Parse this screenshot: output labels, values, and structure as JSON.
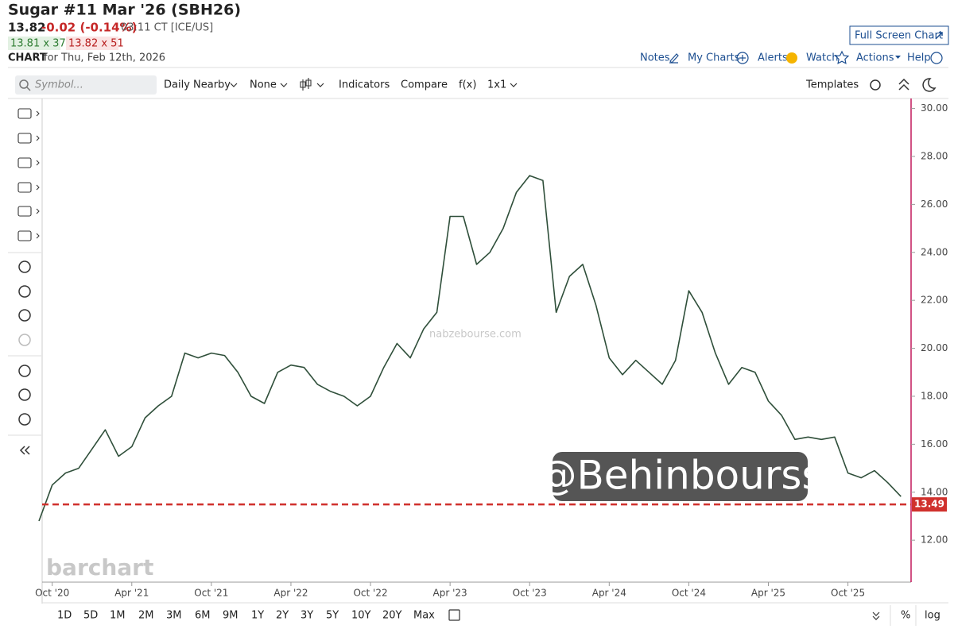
{
  "header": {
    "title": "Sugar #11 Mar '26 (SBH26)",
    "last": "13.82",
    "change": "-0.02 (-0.14%)",
    "time": "03:11 CT [ICE/US]",
    "bid": "13.81 x 37",
    "ask": "13.82 x 51",
    "chart_label": "CHART",
    "chart_date": "for Thu, Feb 12th, 2026",
    "full_screen": "Full Screen Chart"
  },
  "menu": [
    "Notes",
    "My Charts",
    "Alerts",
    "Watch",
    "Actions",
    "Help"
  ],
  "toolbar": {
    "symbol_placeholder": "Symbol...",
    "items": [
      "Daily Nearby",
      "None",
      "Indicators",
      "Compare",
      "f(x)",
      "1x1"
    ],
    "templates": "Templates"
  },
  "chart_data": {
    "type": "line",
    "x": [
      "2020-09",
      "2020-10",
      "2020-11",
      "2020-12",
      "2021-01",
      "2021-02",
      "2021-03",
      "2021-04",
      "2021-05",
      "2021-06",
      "2021-07",
      "2021-08",
      "2021-09",
      "2021-10",
      "2021-11",
      "2021-12",
      "2022-01",
      "2022-02",
      "2022-03",
      "2022-04",
      "2022-05",
      "2022-06",
      "2022-07",
      "2022-08",
      "2022-09",
      "2022-10",
      "2022-11",
      "2022-12",
      "2023-01",
      "2023-02",
      "2023-03",
      "2023-04",
      "2023-05",
      "2023-06",
      "2023-07",
      "2023-08",
      "2023-09",
      "2023-10",
      "2023-11",
      "2023-12",
      "2024-01",
      "2024-02",
      "2024-03",
      "2024-04",
      "2024-05",
      "2024-06",
      "2024-07",
      "2024-08",
      "2024-09",
      "2024-10",
      "2024-11",
      "2024-12",
      "2025-01",
      "2025-02",
      "2025-03",
      "2025-04",
      "2025-05",
      "2025-06",
      "2025-07",
      "2025-08",
      "2025-09",
      "2025-10",
      "2025-11",
      "2025-12",
      "2026-01",
      "2026-02"
    ],
    "series": [
      {
        "name": "SBH26",
        "color": "#2f4f3a",
        "values": [
          12.8,
          14.3,
          14.8,
          15.0,
          15.8,
          16.6,
          15.5,
          15.9,
          17.1,
          17.6,
          18.0,
          19.8,
          19.6,
          19.8,
          19.7,
          19.0,
          18.0,
          17.7,
          19.0,
          19.3,
          19.2,
          18.5,
          18.2,
          18.0,
          17.6,
          18.0,
          19.2,
          20.2,
          19.6,
          20.8,
          21.5,
          25.5,
          25.5,
          23.5,
          24.0,
          25.0,
          26.5,
          27.2,
          27.0,
          21.5,
          23.0,
          23.5,
          21.8,
          19.6,
          18.9,
          19.5,
          19.0,
          18.5,
          19.5,
          22.4,
          21.5,
          19.8,
          18.5,
          19.2,
          19.0,
          17.8,
          17.2,
          16.2,
          16.3,
          16.2,
          16.3,
          14.8,
          14.6,
          14.9,
          14.4,
          13.82
        ]
      }
    ],
    "xlim": [
      "2020-09",
      "2026-03"
    ],
    "xticks": [
      {
        "value": "2020-10",
        "label": "Oct '20"
      },
      {
        "value": "2021-04",
        "label": "Apr '21"
      },
      {
        "value": "2021-10",
        "label": "Oct '21"
      },
      {
        "value": "2022-04",
        "label": "Apr '22"
      },
      {
        "value": "2022-10",
        "label": "Oct '22"
      },
      {
        "value": "2023-04",
        "label": "Apr '23"
      },
      {
        "value": "2023-10",
        "label": "Oct '23"
      },
      {
        "value": "2024-04",
        "label": "Apr '24"
      },
      {
        "value": "2024-10",
        "label": "Oct '24"
      },
      {
        "value": "2025-04",
        "label": "Apr '25"
      },
      {
        "value": "2025-10",
        "label": "Oct '25"
      }
    ],
    "ylim": [
      10.25,
      30.35
    ],
    "yticks": [
      {
        "value": 12,
        "label": "12.00"
      },
      {
        "value": 14,
        "label": "14.00"
      },
      {
        "value": 16,
        "label": "16.00"
      },
      {
        "value": 18,
        "label": "18.00"
      },
      {
        "value": 20,
        "label": "20.00"
      },
      {
        "value": 22,
        "label": "22.00"
      },
      {
        "value": 24,
        "label": "24.00"
      },
      {
        "value": 26,
        "label": "26.00"
      },
      {
        "value": 28,
        "label": "28.00"
      },
      {
        "value": 30,
        "label": "30.00"
      }
    ],
    "reference_line": {
      "value": 13.49,
      "color": "#d0312d"
    },
    "watermarks": [
      "barchart",
      "nabzebourse.com",
      "@Behinbourss"
    ]
  },
  "periods": [
    "1D",
    "5D",
    "1M",
    "2M",
    "3M",
    "6M",
    "9M",
    "1Y",
    "2Y",
    "3Y",
    "5Y",
    "10Y",
    "20Y",
    "Max"
  ],
  "percent": "%",
  "log": "log"
}
